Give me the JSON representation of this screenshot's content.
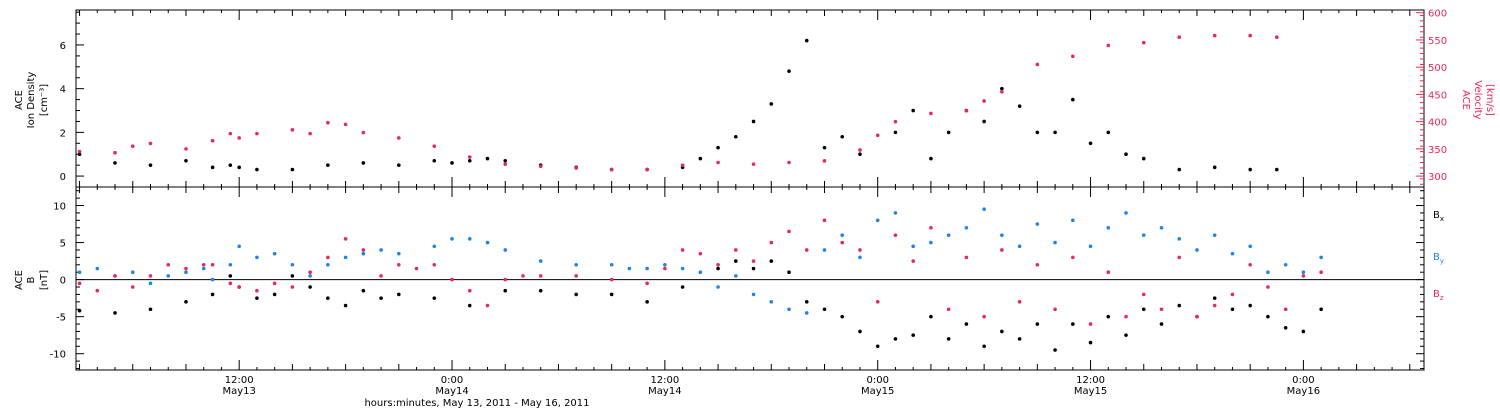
{
  "colors": {
    "black": "#000000",
    "red": "#e8285a",
    "blue": "#1f84e6"
  },
  "chart_data": [
    {
      "type": "scatter",
      "panel": "top",
      "ylabel_lines": [
        "ACE",
        "Ion Density"
      ],
      "ylabel_unit": "[cm⁻³]",
      "ylim": [
        -0.5,
        7.6
      ],
      "yticks": [
        0,
        2,
        4,
        6
      ],
      "y2label_lines": [
        "ACE",
        "Velocity"
      ],
      "y2label_unit": "[km/s]",
      "y2lim": [
        280,
        605
      ],
      "y2ticks": [
        300,
        350,
        400,
        450,
        500,
        550,
        600
      ],
      "series": [
        {
          "color": "#000000",
          "x": [
            0,
            2,
            4,
            6,
            7.5,
            8.5,
            9,
            10,
            12,
            14,
            16,
            18,
            20,
            21,
            22,
            23,
            24,
            26,
            28,
            30,
            32,
            34,
            35,
            36,
            37,
            38,
            39,
            40,
            41,
            42,
            43,
            44,
            46,
            47,
            48,
            49,
            50,
            51,
            52,
            53,
            54,
            55,
            56,
            57,
            58,
            59,
            60,
            62,
            64,
            66,
            67.5
          ],
          "y": [
            1.0,
            0.6,
            0.5,
            0.7,
            0.4,
            0.5,
            0.4,
            0.3,
            0.3,
            0.5,
            0.6,
            0.5,
            0.7,
            0.6,
            0.7,
            0.8,
            0.7,
            0.5,
            0.4,
            0.3,
            0.3,
            0.4,
            0.8,
            1.3,
            1.8,
            2.5,
            3.3,
            4.8,
            6.2,
            1.3,
            1.8,
            1.0,
            2.0,
            3.0,
            0.8,
            2.0,
            3.0,
            2.5,
            4.0,
            3.2,
            2.0,
            2.0,
            3.5,
            1.5,
            2.0,
            1.0,
            0.8,
            0.3,
            0.4,
            0.3,
            0.3
          ]
        },
        {
          "color": "#e8285a",
          "axis": "right",
          "x": [
            0,
            2,
            3,
            4,
            6,
            7.5,
            8.5,
            9,
            10,
            12,
            13,
            14,
            15,
            16,
            18,
            20,
            22,
            24,
            26,
            28,
            30,
            32,
            34,
            36,
            38,
            40,
            42,
            44,
            45,
            46,
            48,
            50,
            51,
            52,
            54,
            56,
            58,
            60,
            62,
            64,
            66,
            67.5
          ],
          "y": [
            345,
            343,
            355,
            360,
            350,
            365,
            378,
            370,
            378,
            385,
            378,
            398,
            395,
            380,
            370,
            355,
            335,
            322,
            318,
            315,
            312,
            312,
            320,
            325,
            322,
            325,
            328,
            348,
            375,
            400,
            415,
            420,
            438,
            455,
            505,
            520,
            540,
            545,
            555,
            558,
            558,
            555
          ]
        }
      ]
    },
    {
      "type": "scatter",
      "panel": "bottom",
      "ylabel_lines": [
        "ACE",
        "B"
      ],
      "ylabel_unit": "[nT]",
      "ylim": [
        -12.2,
        12.5
      ],
      "yticks": [
        -10,
        -5,
        0,
        5,
        10
      ],
      "zero_line": true,
      "xlim": [
        -0.2,
        75.8
      ],
      "xticks": [
        {
          "x": 9,
          "label": "12:00",
          "sub": "May13"
        },
        {
          "x": 21,
          "label": "0:00",
          "sub": "May14"
        },
        {
          "x": 33,
          "label": "12:00",
          "sub": "May14"
        },
        {
          "x": 45,
          "label": "0:00",
          "sub": "May15"
        },
        {
          "x": 57,
          "label": "12:00",
          "sub": "May15"
        },
        {
          "x": 69,
          "label": "0:00",
          "sub": "May16"
        }
      ],
      "xlabel": "hours:minutes, May 13, 2011 - May 16, 2011",
      "series": [
        {
          "name": "B",
          "sub": "x",
          "color": "#000000",
          "x": [
            0,
            2,
            4,
            6,
            7.5,
            8.5,
            9,
            10,
            11,
            12,
            13,
            14,
            15,
            16,
            17,
            18,
            20,
            22,
            24,
            26,
            28,
            30,
            32,
            34,
            36,
            37,
            38,
            39,
            40,
            41,
            42,
            43,
            44,
            45,
            46,
            47,
            48,
            49,
            50,
            51,
            52,
            53,
            54,
            55,
            56,
            57,
            58,
            59,
            60,
            61,
            62,
            63,
            64,
            65,
            66,
            67,
            68,
            69,
            70
          ],
          "y": [
            -4.2,
            -4.5,
            -4.0,
            -3.0,
            -2.0,
            0.5,
            -1.0,
            -2.5,
            -2.0,
            0.5,
            -1.0,
            -2.5,
            -3.5,
            -1.5,
            -2.5,
            -2.0,
            -2.5,
            -3.5,
            -1.5,
            -1.5,
            -2.0,
            -2.0,
            -3.0,
            -1.0,
            1.5,
            2.5,
            1.5,
            2.5,
            1.0,
            -3.0,
            -4.0,
            -5.0,
            -7.0,
            -9.0,
            -8.0,
            -7.5,
            -5.0,
            -8.0,
            -6.0,
            -9.0,
            -7.0,
            -8.0,
            -6.0,
            -9.5,
            -6.0,
            -8.5,
            -5.0,
            -7.5,
            -4.0,
            -6.0,
            -3.5,
            -5.0,
            -2.5,
            -4.0,
            -3.5,
            -5.0,
            -6.5,
            -7.0,
            -4.0
          ]
        },
        {
          "name": "B",
          "sub": "y",
          "color": "#1f84e6",
          "x": [
            0,
            1,
            2,
            3,
            4,
            5,
            6,
            7,
            7.5,
            8.5,
            9,
            10,
            11,
            12,
            13,
            14,
            15,
            16,
            17,
            18,
            20,
            21,
            22,
            23,
            24,
            26,
            28,
            30,
            31,
            32,
            33,
            34,
            35,
            36,
            37,
            38,
            39,
            40,
            41,
            42,
            43,
            44,
            45,
            46,
            47,
            48,
            49,
            50,
            51,
            52,
            53,
            54,
            55,
            56,
            57,
            58,
            59,
            60,
            61,
            62,
            63,
            64,
            65,
            66,
            67,
            68,
            69,
            70
          ],
          "y": [
            1.0,
            1.5,
            0.5,
            1.0,
            -0.5,
            0.5,
            1.0,
            1.5,
            0.0,
            2.0,
            4.5,
            3.0,
            3.5,
            2.0,
            0.5,
            2.0,
            3.0,
            3.5,
            4.0,
            3.5,
            4.5,
            5.5,
            5.5,
            5.0,
            4.0,
            2.5,
            2.0,
            2.0,
            1.5,
            1.5,
            2.0,
            1.5,
            1.0,
            -1.0,
            0.5,
            -2.0,
            -3.0,
            -4.0,
            -4.5,
            4.0,
            6.0,
            3.0,
            8.0,
            9.0,
            4.5,
            5.0,
            6.0,
            7.0,
            9.5,
            6.0,
            4.5,
            7.5,
            5.0,
            8.0,
            4.5,
            7.0,
            9.0,
            6.0,
            7.0,
            5.5,
            4.0,
            6.0,
            3.5,
            4.5,
            1.0,
            2.0,
            1.0,
            3.0
          ]
        },
        {
          "name": "B",
          "sub": "z",
          "color": "#e8285a",
          "x": [
            0,
            1,
            2,
            3,
            4,
            5,
            6,
            7,
            7.5,
            8.5,
            9,
            10,
            11,
            12,
            13,
            14,
            15,
            16,
            17,
            18,
            19,
            20,
            21,
            22,
            23,
            24,
            25,
            26,
            28,
            30,
            32,
            33,
            34,
            35,
            36,
            37,
            38,
            39,
            40,
            41,
            42,
            43,
            44,
            45,
            46,
            47,
            48,
            49,
            50,
            51,
            52,
            53,
            54,
            55,
            56,
            57,
            58,
            59,
            60,
            61,
            62,
            63,
            64,
            65,
            66,
            67,
            68,
            69,
            70
          ],
          "y": [
            -0.5,
            -1.5,
            0.5,
            -1.0,
            0.5,
            2.0,
            1.5,
            2.0,
            2.0,
            -0.5,
            -1.0,
            -1.5,
            -0.5,
            -1.0,
            1.0,
            3.0,
            5.5,
            4.0,
            0.5,
            2.0,
            1.5,
            2.0,
            0.0,
            -1.5,
            -3.5,
            0.0,
            0.5,
            0.5,
            0.5,
            0.0,
            -0.5,
            1.5,
            4.0,
            3.5,
            2.0,
            4.0,
            2.5,
            5.0,
            6.5,
            4.0,
            8.0,
            5.0,
            4.0,
            -3.0,
            6.0,
            2.5,
            7.0,
            -4.0,
            3.0,
            -5.0,
            4.0,
            -3.0,
            2.0,
            -4.0,
            3.0,
            -6.0,
            1.0,
            -5.0,
            -2.0,
            -4.0,
            3.0,
            -5.0,
            -3.5,
            -2.0,
            2.0,
            -1.0,
            -4.0,
            0.5,
            1.0
          ]
        }
      ]
    }
  ]
}
